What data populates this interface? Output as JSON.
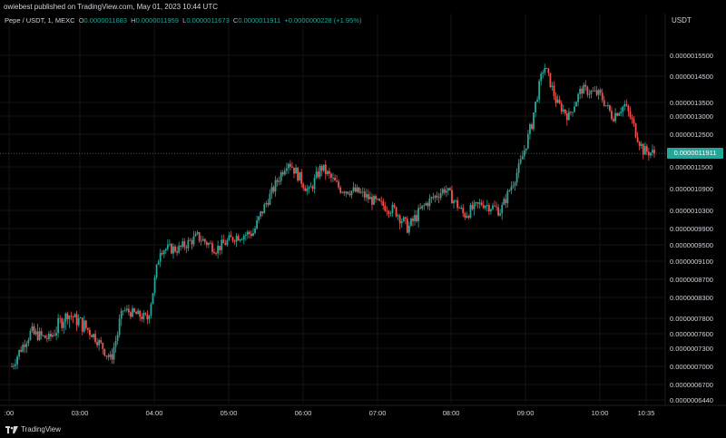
{
  "publisher": "owiebest published on TradingView.com, May 01, 2023 10:44 UTC",
  "legend": {
    "symbol": "Pepe / USDT, 1, MEXC",
    "o_label": "O",
    "o": "0.0000011683",
    "h_label": "H",
    "h": "0.0000011959",
    "l_label": "L",
    "l": "0.0000011673",
    "c_label": "C",
    "c": "0.0000011911",
    "change": "+0.0000000228 (+1.95%)"
  },
  "unit": "USDT",
  "current_price": "0.0000011911",
  "brand": "TradingView",
  "colors": {
    "up": "#26a69a",
    "down": "#ef5350",
    "background": "#000000",
    "text": "#d1d4dc"
  },
  "chart_data": {
    "type": "candlestick",
    "timeframe_minutes": 1,
    "y_ticks": [
      "0.0000015500",
      "0.0000014500",
      "0.0000013500",
      "0.0000013000",
      "0.0000012500",
      "0.0000011500",
      "0.0000010900",
      "0.0000010300",
      "0.0000009900",
      "0.0000009500",
      "0.0000009100",
      "0.0000008700",
      "0.0000008300",
      "0.0000007800",
      "0.0000007600",
      "0.0000007300",
      "0.0000007000",
      "0.0000006700",
      "0.0000006440"
    ],
    "x_ticks": [
      ":00",
      "03:00",
      "04:00",
      "05:00",
      "06:00",
      "07:00",
      "08:00",
      "09:00",
      "10:00",
      "10:35"
    ],
    "anchors": [
      [
        "02:05",
        7e-07
      ],
      [
        "02:20",
        7.6e-07
      ],
      [
        "02:35",
        7.5e-07
      ],
      [
        "02:50",
        7.9e-07
      ],
      [
        "03:10",
        7.6e-07
      ],
      [
        "03:25",
        7.1e-07
      ],
      [
        "03:35",
        8e-07
      ],
      [
        "03:55",
        7.8e-07
      ],
      [
        "04:05",
        9.4e-07
      ],
      [
        "04:20",
        9.4e-07
      ],
      [
        "04:35",
        9.7e-07
      ],
      [
        "04:50",
        9.4e-07
      ],
      [
        "05:05",
        9.7e-07
      ],
      [
        "05:20",
        9.8e-07
      ],
      [
        "05:35",
        1.08e-06
      ],
      [
        "05:48",
        1.17e-06
      ],
      [
        "06:05",
        1.08e-06
      ],
      [
        "06:15",
        1.15e-06
      ],
      [
        "06:30",
        1.09e-06
      ],
      [
        "06:45",
        1.08e-06
      ],
      [
        "07:00",
        1.05e-06
      ],
      [
        "07:15",
        1.03e-06
      ],
      [
        "07:25",
        9.9e-07
      ],
      [
        "07:40",
        1.05e-06
      ],
      [
        "07:55",
        1.09e-06
      ],
      [
        "08:10",
        1.02e-06
      ],
      [
        "08:25",
        1.05e-06
      ],
      [
        "08:40",
        1.03e-06
      ],
      [
        "08:55",
        1.15e-06
      ],
      [
        "09:05",
        1.28e-06
      ],
      [
        "09:15",
        1.5e-06
      ],
      [
        "09:25",
        1.35e-06
      ],
      [
        "09:35",
        1.3e-06
      ],
      [
        "09:45",
        1.4e-06
      ],
      [
        "10:00",
        1.38e-06
      ],
      [
        "10:10",
        1.3e-06
      ],
      [
        "10:20",
        1.34e-06
      ],
      [
        "10:35",
        1.2e-06
      ],
      [
        "10:44",
        1.1911e-06
      ]
    ]
  }
}
